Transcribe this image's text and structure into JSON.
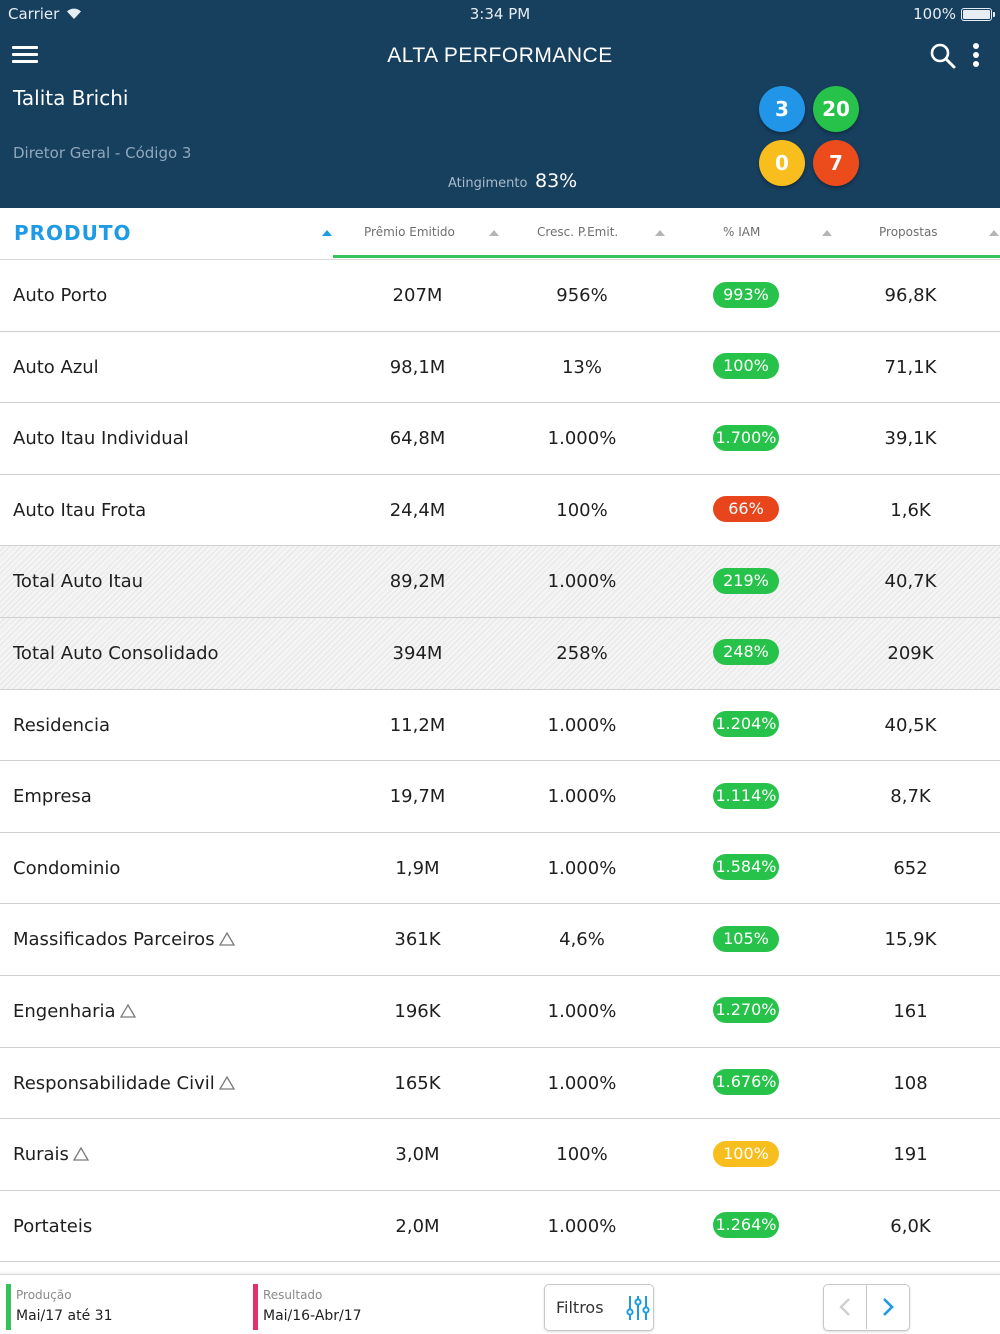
{
  "status_bar": {
    "carrier": "Carrier",
    "time": "3:34 PM",
    "battery": "100%"
  },
  "header": {
    "title": "ALTA PERFORMANCE",
    "user_name": "Talita Brichi",
    "user_role": "Diretor Geral - Código 3",
    "atingimento_label": "Atingimento",
    "atingimento_value": "83%",
    "counters": [
      {
        "value": "3",
        "color": "#2196e8"
      },
      {
        "value": "20",
        "color": "#27c24a"
      },
      {
        "value": "0",
        "color": "#f8be1d"
      },
      {
        "value": "7",
        "color": "#ec4c1c"
      }
    ]
  },
  "table": {
    "columns": [
      {
        "label": "PRODUTO"
      },
      {
        "label": "Prêmio Emitido"
      },
      {
        "label": "Cresc. P.Emit."
      },
      {
        "label": "% IAM"
      },
      {
        "label": "Propostas"
      }
    ],
    "rows": [
      {
        "produto": "Auto Porto",
        "premio": "207M",
        "cresc": "956%",
        "iam": "993%",
        "iam_status": "green",
        "propostas": "96,8K",
        "total": false,
        "warning": false
      },
      {
        "produto": "Auto Azul",
        "premio": "98,1M",
        "cresc": "13%",
        "iam": "100%",
        "iam_status": "green",
        "propostas": "71,1K",
        "total": false,
        "warning": false
      },
      {
        "produto": "Auto Itau Individual",
        "premio": "64,8M",
        "cresc": "1.000%",
        "iam": "1.700%",
        "iam_status": "green",
        "propostas": "39,1K",
        "total": false,
        "warning": false
      },
      {
        "produto": "Auto Itau Frota",
        "premio": "24,4M",
        "cresc": "100%",
        "iam": "66%",
        "iam_status": "red",
        "propostas": "1,6K",
        "total": false,
        "warning": false
      },
      {
        "produto": "Total Auto Itau",
        "premio": "89,2M",
        "cresc": "1.000%",
        "iam": "219%",
        "iam_status": "green",
        "propostas": "40,7K",
        "total": true,
        "warning": false
      },
      {
        "produto": "Total Auto Consolidado",
        "premio": "394M",
        "cresc": "258%",
        "iam": "248%",
        "iam_status": "green",
        "propostas": "209K",
        "total": true,
        "warning": false
      },
      {
        "produto": "Residencia",
        "premio": "11,2M",
        "cresc": "1.000%",
        "iam": "1.204%",
        "iam_status": "green",
        "propostas": "40,5K",
        "total": false,
        "warning": false
      },
      {
        "produto": "Empresa",
        "premio": "19,7M",
        "cresc": "1.000%",
        "iam": "1.114%",
        "iam_status": "green",
        "propostas": "8,7K",
        "total": false,
        "warning": false
      },
      {
        "produto": "Condominio",
        "premio": "1,9M",
        "cresc": "1.000%",
        "iam": "1.584%",
        "iam_status": "green",
        "propostas": "652",
        "total": false,
        "warning": false
      },
      {
        "produto": "Massificados Parceiros",
        "premio": "361K",
        "cresc": "4,6%",
        "iam": "105%",
        "iam_status": "green",
        "propostas": "15,9K",
        "total": false,
        "warning": true
      },
      {
        "produto": "Engenharia",
        "premio": "196K",
        "cresc": "1.000%",
        "iam": "1.270%",
        "iam_status": "green",
        "propostas": "161",
        "total": false,
        "warning": true
      },
      {
        "produto": "Responsabilidade Civil",
        "premio": "165K",
        "cresc": "1.000%",
        "iam": "1.676%",
        "iam_status": "green",
        "propostas": "108",
        "total": false,
        "warning": true
      },
      {
        "produto": "Rurais",
        "premio": "3,0M",
        "cresc": "100%",
        "iam": "100%",
        "iam_status": "yellow",
        "propostas": "191",
        "total": false,
        "warning": true
      },
      {
        "produto": "Portateis",
        "premio": "2,0M",
        "cresc": "1.000%",
        "iam": "1.264%",
        "iam_status": "green",
        "propostas": "6,0K",
        "total": false,
        "warning": false
      }
    ]
  },
  "status_colors": {
    "green": "#27c24a",
    "red": "#e8451c",
    "yellow": "#f8be1d"
  },
  "footer": {
    "producao_label": "Produção",
    "producao_value": "Mai/17 até 31",
    "producao_color": "#33c35a",
    "resultado_label": "Resultado",
    "resultado_value": "Mai/16-Abr/17",
    "resultado_color": "#e2306c",
    "filtros_label": "Filtros",
    "filtros_icon": "sliders-icon",
    "nav_prev_icon": "chevron-left-icon",
    "nav_next_icon": "chevron-right-icon"
  }
}
